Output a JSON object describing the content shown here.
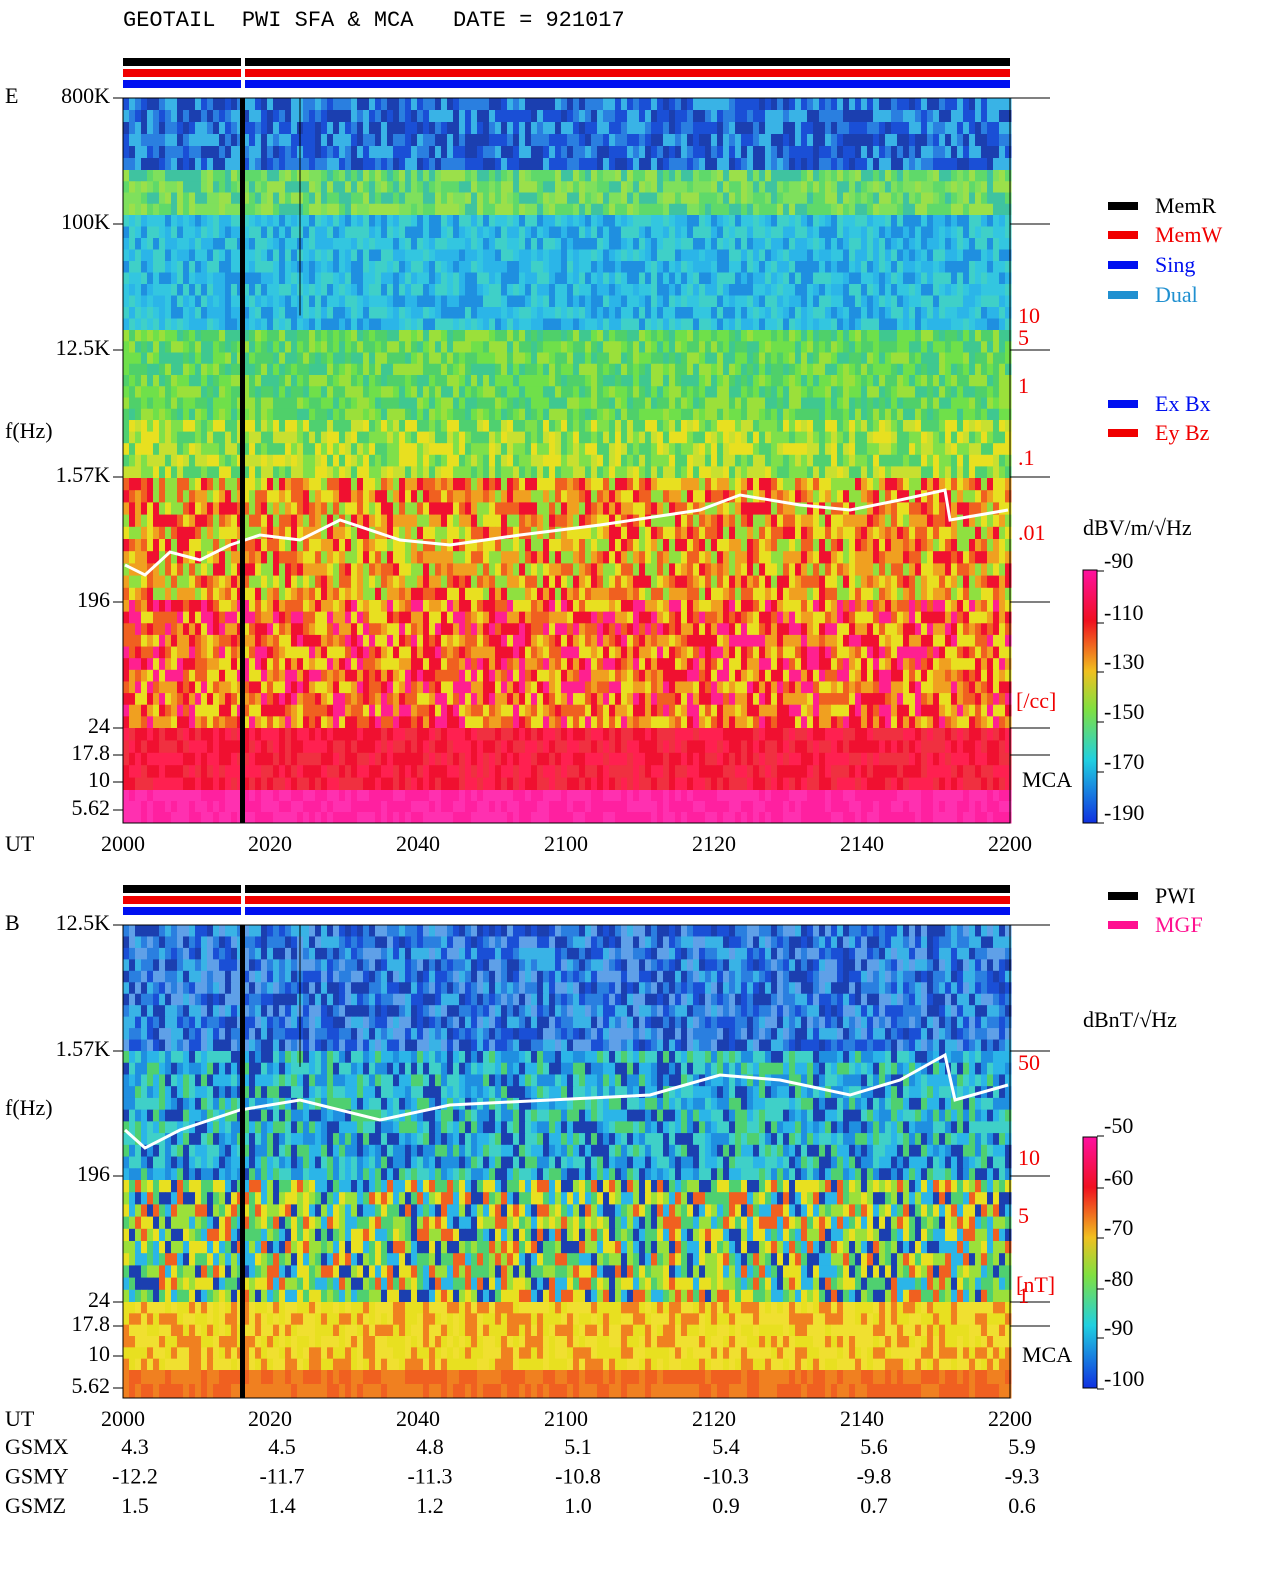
{
  "title": "GEOTAIL  PWI SFA & MCA   DATE = 921017",
  "panels": [
    {
      "label": "E",
      "y_label": "f(Hz)",
      "x_label": "UT",
      "y_ticks": [
        "800K",
        "100K",
        "12.5K",
        "1.57K",
        "196",
        "24",
        "17.8",
        "10",
        "5.62"
      ],
      "x_ticks": [
        "2000",
        "2020",
        "2040",
        "2100",
        "2120",
        "2140",
        "2200"
      ],
      "right_ticks": [
        "10",
        "5",
        "1",
        ".1",
        ".01"
      ],
      "right_unit": "[/cc]",
      "mca": "MCA",
      "colorbar": {
        "title": "dBV/m/√Hz",
        "ticks": [
          "-90",
          "-110",
          "-130",
          "-150",
          "-170",
          "-190"
        ]
      }
    },
    {
      "label": "B",
      "y_label": "f(Hz)",
      "x_label": "UT",
      "y_ticks": [
        "12.5K",
        "1.57K",
        "196",
        "24",
        "17.8",
        "10",
        "5.62"
      ],
      "x_ticks": [
        "2000",
        "2020",
        "2040",
        "2100",
        "2120",
        "2140",
        "2200"
      ],
      "right_ticks": [
        "50",
        "10",
        "5",
        "1"
      ],
      "right_unit": "[nT]",
      "mca": "MCA",
      "colorbar": {
        "title": "dBnT/√Hz",
        "ticks": [
          "-50",
          "-60",
          "-70",
          "-80",
          "-90",
          "-100"
        ]
      }
    }
  ],
  "legends": {
    "mode": [
      "MemR",
      "MemW",
      "Sing",
      "Dual"
    ],
    "component": [
      "Ex Bx",
      "Ey Bz"
    ],
    "source": [
      "PWI",
      "MGF"
    ]
  },
  "orbit": [
    {
      "name": "GSMX",
      "values": [
        "4.3",
        "4.5",
        "4.8",
        "5.1",
        "5.4",
        "5.6",
        "5.9"
      ]
    },
    {
      "name": "GSMY",
      "values": [
        "-12.2",
        "-11.7",
        "-11.3",
        "-10.8",
        "-10.3",
        "-9.8",
        "-9.3"
      ]
    },
    {
      "name": "GSMZ",
      "values": [
        "1.5",
        "1.4",
        "1.2",
        "1.0",
        "0.9",
        "0.7",
        "0.6"
      ]
    }
  ]
}
